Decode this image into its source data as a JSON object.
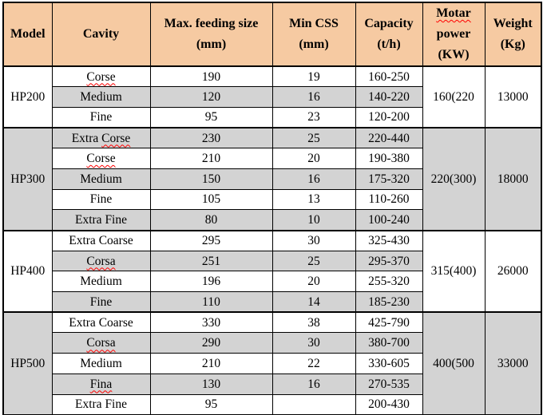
{
  "table": {
    "header": {
      "model": "Model",
      "cavity": "Cavity",
      "max_feeding": [
        "Max. feeding size",
        "(mm)"
      ],
      "min_css": [
        "Min CSS",
        "(mm)"
      ],
      "capacity": [
        "Capacity",
        "(t/h)"
      ],
      "motor_power": [
        "Motar",
        "power",
        "(KW)"
      ],
      "motor_power_misspelled": true,
      "weight": [
        "Weight",
        "(Kg)"
      ]
    },
    "groups": [
      {
        "model": "HP200",
        "model_shaded": false,
        "motor_power": "160(220",
        "weight": "13000",
        "merged_shaded": false,
        "rows": [
          {
            "cavity_pre": "",
            "cavity_word": "Corse",
            "misspelled": true,
            "max_feeding": "190",
            "min_css": "19",
            "capacity": "160-250",
            "shaded": false
          },
          {
            "cavity_pre": "",
            "cavity_word": "Medium",
            "misspelled": false,
            "max_feeding": "120",
            "min_css": "16",
            "capacity": "140-220",
            "shaded": true
          },
          {
            "cavity_pre": "",
            "cavity_word": "Fine",
            "misspelled": false,
            "max_feeding": "95",
            "min_css": "23",
            "capacity": "120-200",
            "shaded": false
          }
        ]
      },
      {
        "model": "HP300",
        "model_shaded": true,
        "motor_power": "220(300)",
        "weight": "18000",
        "merged_shaded": true,
        "rows": [
          {
            "cavity_pre": "Extra ",
            "cavity_word": "Corse",
            "misspelled": true,
            "max_feeding": "230",
            "min_css": "25",
            "capacity": "220-440",
            "shaded": true
          },
          {
            "cavity_pre": "",
            "cavity_word": "Corse",
            "misspelled": true,
            "max_feeding": "210",
            "min_css": "20",
            "capacity": "190-380",
            "shaded": false
          },
          {
            "cavity_pre": "",
            "cavity_word": "Medium",
            "misspelled": false,
            "max_feeding": "150",
            "min_css": "16",
            "capacity": "175-320",
            "shaded": true
          },
          {
            "cavity_pre": "",
            "cavity_word": "Fine",
            "misspelled": false,
            "max_feeding": "105",
            "min_css": "13",
            "capacity": "110-260",
            "shaded": false
          },
          {
            "cavity_pre": "",
            "cavity_word": "Extra Fine",
            "misspelled": false,
            "max_feeding": "80",
            "min_css": "10",
            "capacity": "100-240",
            "shaded": true
          }
        ]
      },
      {
        "model": "HP400",
        "model_shaded": false,
        "motor_power": "315(400)",
        "weight": "26000",
        "merged_shaded": false,
        "rows": [
          {
            "cavity_pre": "",
            "cavity_word": "Extra Coarse",
            "misspelled": false,
            "max_feeding": "295",
            "min_css": "30",
            "capacity": "325-430",
            "shaded": false
          },
          {
            "cavity_pre": "",
            "cavity_word": "Corsa",
            "misspelled": true,
            "max_feeding": "251",
            "min_css": "25",
            "capacity": "295-370",
            "shaded": true
          },
          {
            "cavity_pre": "",
            "cavity_word": "Medium",
            "misspelled": false,
            "max_feeding": "196",
            "min_css": "20",
            "capacity": "255-320",
            "shaded": false
          },
          {
            "cavity_pre": "",
            "cavity_word": "Fine",
            "misspelled": false,
            "max_feeding": "110",
            "min_css": "14",
            "capacity": "185-230",
            "shaded": true
          }
        ]
      },
      {
        "model": "HP500",
        "model_shaded": true,
        "motor_power": "400(500",
        "weight": "33000",
        "merged_shaded": true,
        "rows": [
          {
            "cavity_pre": "",
            "cavity_word": "Extra Coarse",
            "misspelled": false,
            "max_feeding": "330",
            "min_css": "38",
            "capacity": "425-790",
            "shaded": false
          },
          {
            "cavity_pre": "",
            "cavity_word": "Corsa",
            "misspelled": true,
            "max_feeding": "290",
            "min_css": "30",
            "capacity": "380-700",
            "shaded": true
          },
          {
            "cavity_pre": "",
            "cavity_word": "Medium",
            "misspelled": false,
            "max_feeding": "210",
            "min_css": "22",
            "capacity": "330-605",
            "shaded": false
          },
          {
            "cavity_pre": "",
            "cavity_word": "Fina",
            "misspelled": true,
            "max_feeding": "130",
            "min_css": "16",
            "capacity": "270-535",
            "shaded": true
          },
          {
            "cavity_pre": "",
            "cavity_word": "Extra Fine",
            "misspelled": false,
            "max_feeding": "95",
            "min_css": "",
            "capacity": "200-430",
            "shaded": false
          }
        ]
      }
    ],
    "colors": {
      "header_bg": "#f6caa2",
      "shaded_row_bg": "#d3d3d3",
      "border": "#000000",
      "misspell_underline": "#ff0000"
    }
  }
}
